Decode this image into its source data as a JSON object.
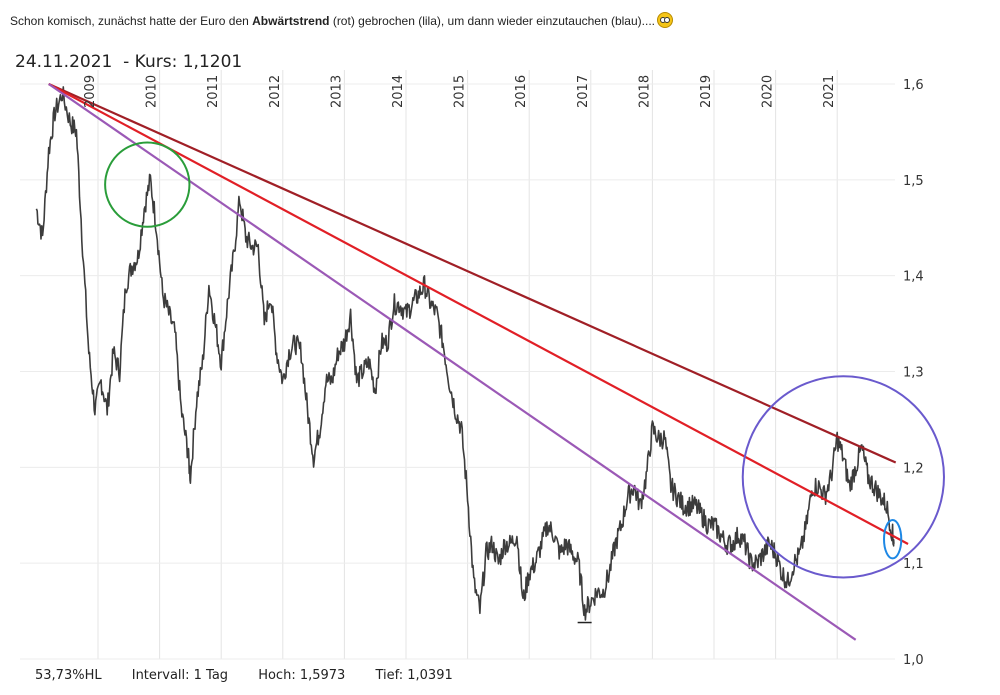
{
  "post": {
    "text_before": "Schon komisch, zunächst hatte der Euro den ",
    "text_bold": "Abwärtstrend",
    "text_after": " (rot) gebrochen (lila), um dann wieder einzutauchen (blau)....",
    "emoji": "flushed-face-icon"
  },
  "chart_data": {
    "type": "line",
    "title": "24.11.2021  - Kurs: 1,1201",
    "x_tick_labels": [
      "2009",
      "2010",
      "2011",
      "2012",
      "2013",
      "2014",
      "2015",
      "2016",
      "2017",
      "2018",
      "2019",
      "2020",
      "2021"
    ],
    "y_tick_labels": [
      "1,6",
      "1,5",
      "1,4",
      "1,3",
      "1,2",
      "1,1",
      "1,0"
    ],
    "y_ticks": [
      1.6,
      1.5,
      1.4,
      1.3,
      1.2,
      1.1,
      1.0
    ],
    "ylim": [
      1.0,
      1.6
    ],
    "series": [
      {
        "color": "#3c3c3c",
        "points": [
          [
            2008.0,
            1.47
          ],
          [
            2008.1,
            1.44
          ],
          [
            2008.2,
            1.53
          ],
          [
            2008.3,
            1.57
          ],
          [
            2008.42,
            1.59
          ],
          [
            2008.55,
            1.56
          ],
          [
            2008.65,
            1.55
          ],
          [
            2008.75,
            1.43
          ],
          [
            2008.85,
            1.32
          ],
          [
            2008.95,
            1.26
          ],
          [
            2009.05,
            1.29
          ],
          [
            2009.15,
            1.26
          ],
          [
            2009.25,
            1.32
          ],
          [
            2009.35,
            1.3
          ],
          [
            2009.45,
            1.39
          ],
          [
            2009.55,
            1.41
          ],
          [
            2009.65,
            1.42
          ],
          [
            2009.75,
            1.47
          ],
          [
            2009.85,
            1.5
          ],
          [
            2009.95,
            1.45
          ],
          [
            2010.05,
            1.38
          ],
          [
            2010.15,
            1.36
          ],
          [
            2010.25,
            1.34
          ],
          [
            2010.35,
            1.26
          ],
          [
            2010.45,
            1.22
          ],
          [
            2010.5,
            1.19
          ],
          [
            2010.6,
            1.27
          ],
          [
            2010.7,
            1.31
          ],
          [
            2010.8,
            1.39
          ],
          [
            2010.9,
            1.35
          ],
          [
            2011.0,
            1.31
          ],
          [
            2011.1,
            1.37
          ],
          [
            2011.2,
            1.42
          ],
          [
            2011.3,
            1.48
          ],
          [
            2011.4,
            1.44
          ],
          [
            2011.5,
            1.43
          ],
          [
            2011.6,
            1.43
          ],
          [
            2011.7,
            1.35
          ],
          [
            2011.8,
            1.38
          ],
          [
            2011.9,
            1.32
          ],
          [
            2012.0,
            1.29
          ],
          [
            2012.1,
            1.32
          ],
          [
            2012.2,
            1.33
          ],
          [
            2012.3,
            1.32
          ],
          [
            2012.4,
            1.26
          ],
          [
            2012.5,
            1.21
          ],
          [
            2012.6,
            1.24
          ],
          [
            2012.7,
            1.29
          ],
          [
            2012.8,
            1.29
          ],
          [
            2012.9,
            1.32
          ],
          [
            2013.0,
            1.33
          ],
          [
            2013.1,
            1.36
          ],
          [
            2013.2,
            1.29
          ],
          [
            2013.3,
            1.3
          ],
          [
            2013.4,
            1.31
          ],
          [
            2013.5,
            1.28
          ],
          [
            2013.6,
            1.33
          ],
          [
            2013.7,
            1.33
          ],
          [
            2013.8,
            1.37
          ],
          [
            2013.9,
            1.37
          ],
          [
            2014.0,
            1.36
          ],
          [
            2014.1,
            1.37
          ],
          [
            2014.2,
            1.38
          ],
          [
            2014.3,
            1.39
          ],
          [
            2014.4,
            1.37
          ],
          [
            2014.5,
            1.36
          ],
          [
            2014.6,
            1.33
          ],
          [
            2014.7,
            1.29
          ],
          [
            2014.8,
            1.26
          ],
          [
            2014.9,
            1.24
          ],
          [
            2015.0,
            1.17
          ],
          [
            2015.1,
            1.08
          ],
          [
            2015.2,
            1.05
          ],
          [
            2015.3,
            1.11
          ],
          [
            2015.4,
            1.12
          ],
          [
            2015.5,
            1.1
          ],
          [
            2015.6,
            1.12
          ],
          [
            2015.7,
            1.12
          ],
          [
            2015.8,
            1.13
          ],
          [
            2015.9,
            1.06
          ],
          [
            2016.0,
            1.09
          ],
          [
            2016.1,
            1.1
          ],
          [
            2016.2,
            1.12
          ],
          [
            2016.3,
            1.14
          ],
          [
            2016.4,
            1.13
          ],
          [
            2016.5,
            1.11
          ],
          [
            2016.6,
            1.12
          ],
          [
            2016.7,
            1.11
          ],
          [
            2016.8,
            1.1
          ],
          [
            2016.9,
            1.05
          ],
          [
            2017.0,
            1.06
          ],
          [
            2017.1,
            1.07
          ],
          [
            2017.2,
            1.07
          ],
          [
            2017.3,
            1.09
          ],
          [
            2017.4,
            1.12
          ],
          [
            2017.5,
            1.14
          ],
          [
            2017.6,
            1.17
          ],
          [
            2017.7,
            1.18
          ],
          [
            2017.8,
            1.16
          ],
          [
            2017.9,
            1.19
          ],
          [
            2018.0,
            1.24
          ],
          [
            2018.1,
            1.23
          ],
          [
            2018.2,
            1.23
          ],
          [
            2018.3,
            1.18
          ],
          [
            2018.4,
            1.17
          ],
          [
            2018.5,
            1.16
          ],
          [
            2018.6,
            1.16
          ],
          [
            2018.7,
            1.16
          ],
          [
            2018.8,
            1.15
          ],
          [
            2018.9,
            1.14
          ],
          [
            2019.0,
            1.14
          ],
          [
            2019.1,
            1.13
          ],
          [
            2019.2,
            1.12
          ],
          [
            2019.3,
            1.12
          ],
          [
            2019.4,
            1.13
          ],
          [
            2019.5,
            1.12
          ],
          [
            2019.6,
            1.1
          ],
          [
            2019.7,
            1.1
          ],
          [
            2019.8,
            1.11
          ],
          [
            2019.9,
            1.12
          ],
          [
            2020.0,
            1.11
          ],
          [
            2020.1,
            1.09
          ],
          [
            2020.2,
            1.08
          ],
          [
            2020.3,
            1.1
          ],
          [
            2020.4,
            1.11
          ],
          [
            2020.5,
            1.14
          ],
          [
            2020.6,
            1.18
          ],
          [
            2020.7,
            1.18
          ],
          [
            2020.8,
            1.17
          ],
          [
            2020.9,
            1.19
          ],
          [
            2021.0,
            1.23
          ],
          [
            2021.1,
            1.21
          ],
          [
            2021.2,
            1.18
          ],
          [
            2021.3,
            1.2
          ],
          [
            2021.4,
            1.22
          ],
          [
            2021.5,
            1.19
          ],
          [
            2021.6,
            1.18
          ],
          [
            2021.7,
            1.17
          ],
          [
            2021.8,
            1.16
          ],
          [
            2021.9,
            1.13
          ],
          [
            2021.92,
            1.1201
          ]
        ]
      }
    ],
    "trend_lines": [
      {
        "color": "#a01f26",
        "from": [
          2008.2,
          1.6
        ],
        "to": [
          2021.95,
          1.205
        ]
      },
      {
        "color": "#e11f26",
        "from": [
          2008.2,
          1.6
        ],
        "to": [
          2022.15,
          1.12
        ]
      },
      {
        "color": "#9b59b6",
        "from": [
          2008.2,
          1.6
        ],
        "to": [
          2021.3,
          1.02
        ]
      }
    ],
    "markers": [
      {
        "type": "circle",
        "color": "#2a9d3a",
        "at": [
          2009.8,
          1.495
        ],
        "r": 0.044
      },
      {
        "type": "circle",
        "color": "#6a5acd",
        "at": [
          2021.1,
          1.19
        ],
        "r": 0.105
      },
      {
        "type": "ellipse",
        "color": "#1e88e5",
        "at": [
          2021.9,
          1.125
        ],
        "r": 0.02
      }
    ],
    "footer": {
      "hl": "53,73%HL",
      "interval": "Intervall: 1 Tag",
      "high": "Hoch: 1,5973",
      "low": "Tief: 1,0391"
    }
  }
}
